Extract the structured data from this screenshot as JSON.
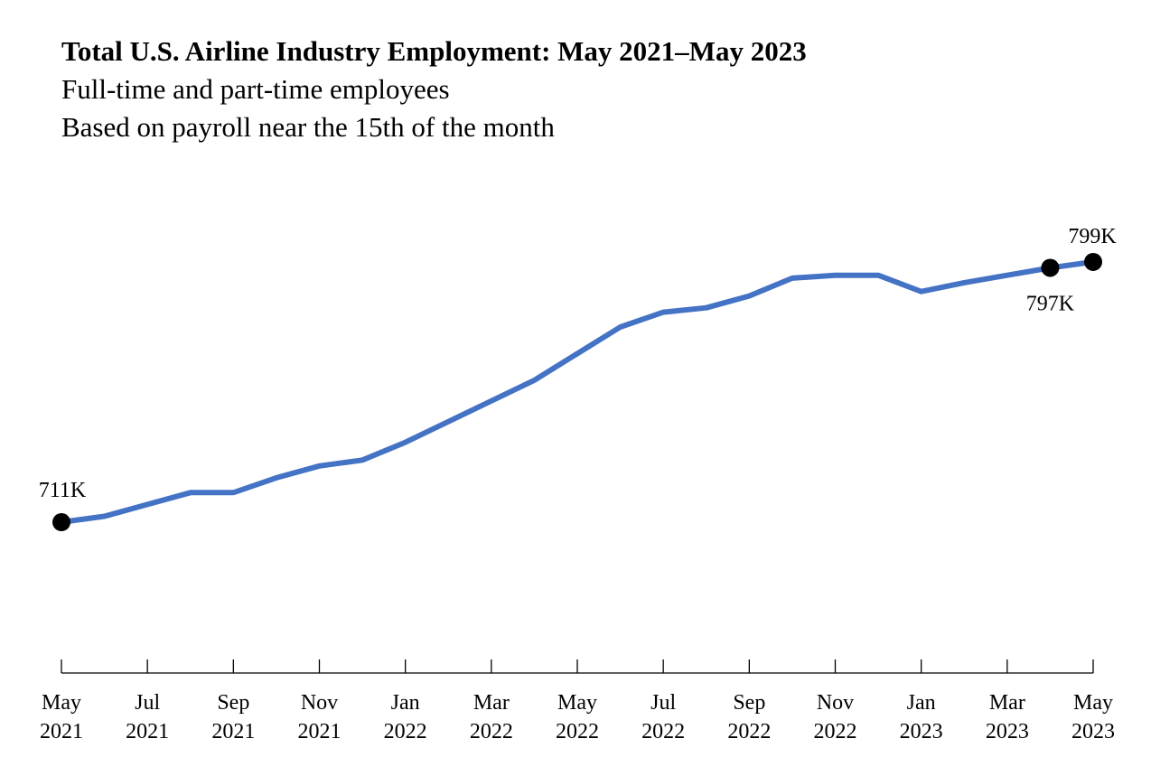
{
  "header": {
    "title": "Total U.S. Airline Industry Employment: May 2021–May 2023",
    "subtitle_1": "Full-time and part-time employees",
    "subtitle_2": "Based on payroll near the 15th of the month"
  },
  "chart_data": {
    "type": "line",
    "title": "Total U.S. Airline Industry Employment: May 2021–May 2023",
    "subtitle": "Full-time and part-time employees; Based on payroll near the 15th of the month",
    "xlabel": "",
    "ylabel": "",
    "x": [
      "May 2021",
      "Jun 2021",
      "Jul 2021",
      "Aug 2021",
      "Sep 2021",
      "Oct 2021",
      "Nov 2021",
      "Dec 2021",
      "Jan 2022",
      "Feb 2022",
      "Mar 2022",
      "Apr 2022",
      "May 2022",
      "Jun 2022",
      "Jul 2022",
      "Aug 2022",
      "Sep 2022",
      "Oct 2022",
      "Nov 2022",
      "Dec 2022",
      "Jan 2023",
      "Feb 2023",
      "Mar 2023",
      "Apr 2023",
      "May 2023"
    ],
    "series": [
      {
        "color": "#4472C4",
        "values": [
          711,
          713,
          717,
          721,
          721,
          726,
          730,
          732,
          738,
          745,
          752,
          759,
          768,
          777,
          782,
          783.5,
          787.5,
          793.5,
          794.5,
          794.5,
          789,
          792,
          794.5,
          797,
          799
        ]
      }
    ],
    "ylim": [
      660,
      828
    ],
    "tick_labels": [
      {
        "month": "May",
        "year": "2021"
      },
      {
        "month": "Jul",
        "year": "2021"
      },
      {
        "month": "Sep",
        "year": "2021"
      },
      {
        "month": "Nov",
        "year": "2021"
      },
      {
        "month": "Jan",
        "year": "2022"
      },
      {
        "month": "Mar",
        "year": "2022"
      },
      {
        "month": "May",
        "year": "2022"
      },
      {
        "month": "Jul",
        "year": "2022"
      },
      {
        "month": "Sep",
        "year": "2022"
      },
      {
        "month": "Nov",
        "year": "2022"
      },
      {
        "month": "Jan",
        "year": "2023"
      },
      {
        "month": "Mar",
        "year": "2023"
      },
      {
        "month": "May",
        "year": "2023"
      }
    ],
    "data_labels": [
      {
        "index": 0,
        "text": "711K",
        "position": "above-left"
      },
      {
        "index": 23,
        "text": "797K",
        "position": "below"
      },
      {
        "index": 24,
        "text": "799K",
        "position": "above"
      }
    ],
    "grid": false,
    "legend": "none"
  }
}
